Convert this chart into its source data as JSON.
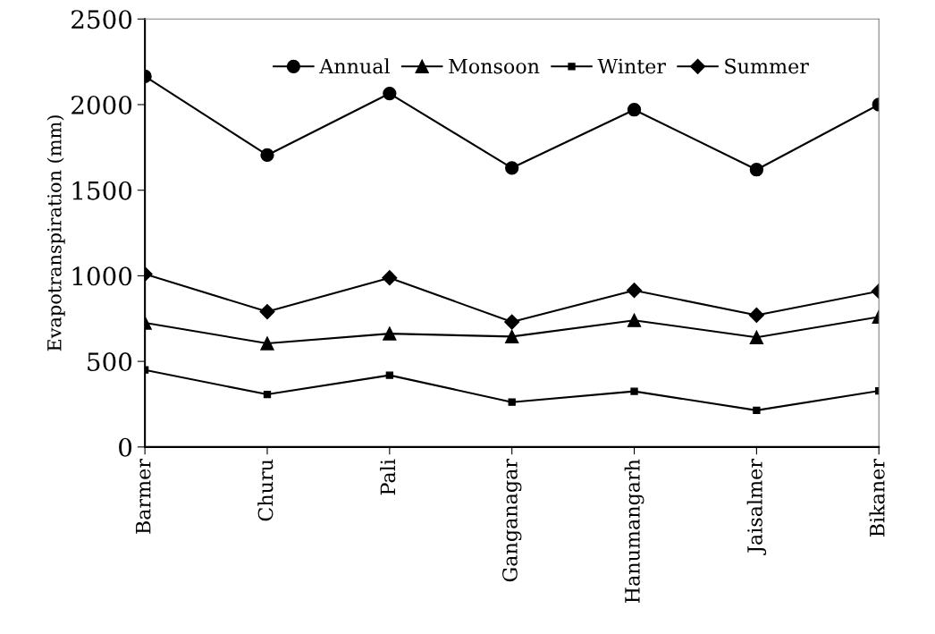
{
  "chart_data": {
    "type": "line",
    "ylabel": "Evapotranspiration (mm)",
    "categories": [
      "Barmer",
      "Churu",
      "Pali",
      "Ganganagar",
      "Hanumangarh",
      "Jaisalmer",
      "Bikaner"
    ],
    "series": [
      {
        "name": "Annual",
        "color": "#000000",
        "marker": "circle",
        "values": [
          2165,
          1705,
          2065,
          1630,
          1970,
          1620,
          2000
        ]
      },
      {
        "name": "Monsoon",
        "color": "#000000",
        "marker": "triangle",
        "values": [
          725,
          605,
          662,
          645,
          740,
          640,
          760
        ]
      },
      {
        "name": "Winter",
        "color": "#000000",
        "marker": "square",
        "values": [
          450,
          307,
          419,
          262,
          325,
          214,
          328
        ]
      },
      {
        "name": "Summer",
        "color": "#000000",
        "marker": "diamond",
        "values": [
          1010,
          790,
          988,
          730,
          915,
          770,
          910
        ]
      }
    ],
    "ylim": [
      0,
      2500
    ],
    "yticks": [
      0,
      500,
      1000,
      1500,
      2000,
      2500
    ],
    "grid": false,
    "legend": "top",
    "line_style": "solid"
  }
}
